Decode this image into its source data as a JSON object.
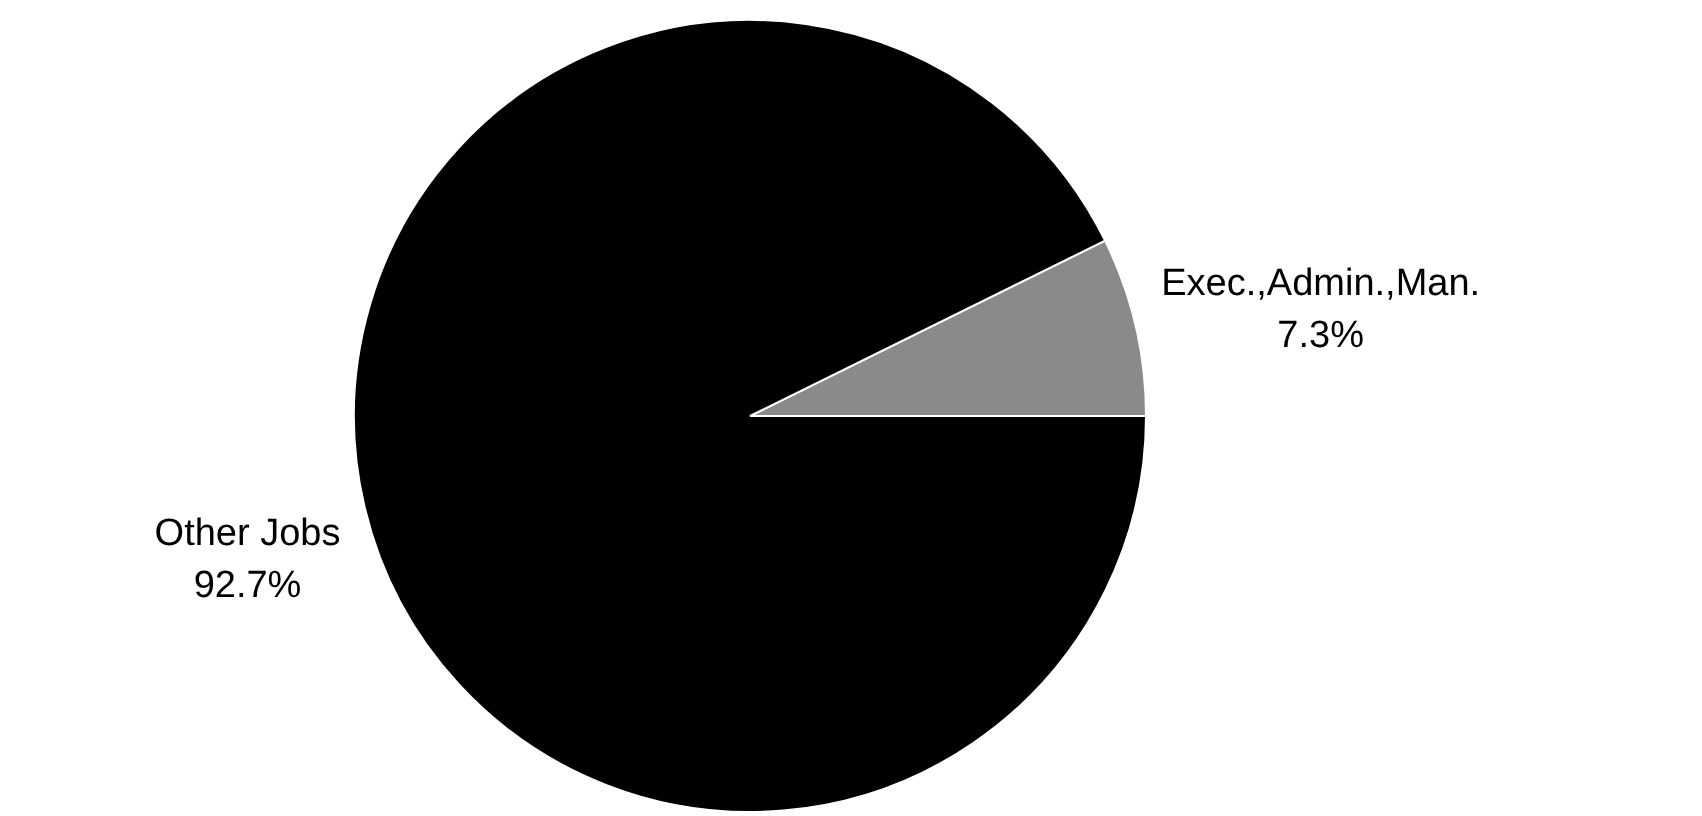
{
  "chart_data": {
    "type": "pie",
    "categories": [
      "Exec.,Admin.,Man.",
      "Other Jobs"
    ],
    "values": [
      7.3,
      92.7
    ],
    "colors": [
      "#8a8a8a",
      "#000000"
    ],
    "value_labels": [
      "7.3%",
      "92.7%"
    ]
  }
}
